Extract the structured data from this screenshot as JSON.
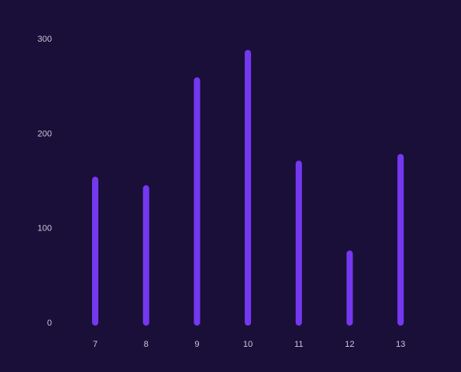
{
  "colors": {
    "background": "#1a0f38",
    "bar": "#7438f0",
    "tick_text": "#c9c4d9"
  },
  "chart_data": {
    "type": "bar",
    "title": "",
    "xlabel": "",
    "ylabel": "",
    "categories": [
      "7",
      "8",
      "9",
      "10",
      "11",
      "12",
      "13"
    ],
    "values": [
      154,
      145,
      259,
      288,
      171,
      76,
      178
    ],
    "ylim": [
      0,
      300
    ],
    "yticks": [
      0,
      100,
      200,
      300
    ],
    "grid": false,
    "legend": "none"
  }
}
